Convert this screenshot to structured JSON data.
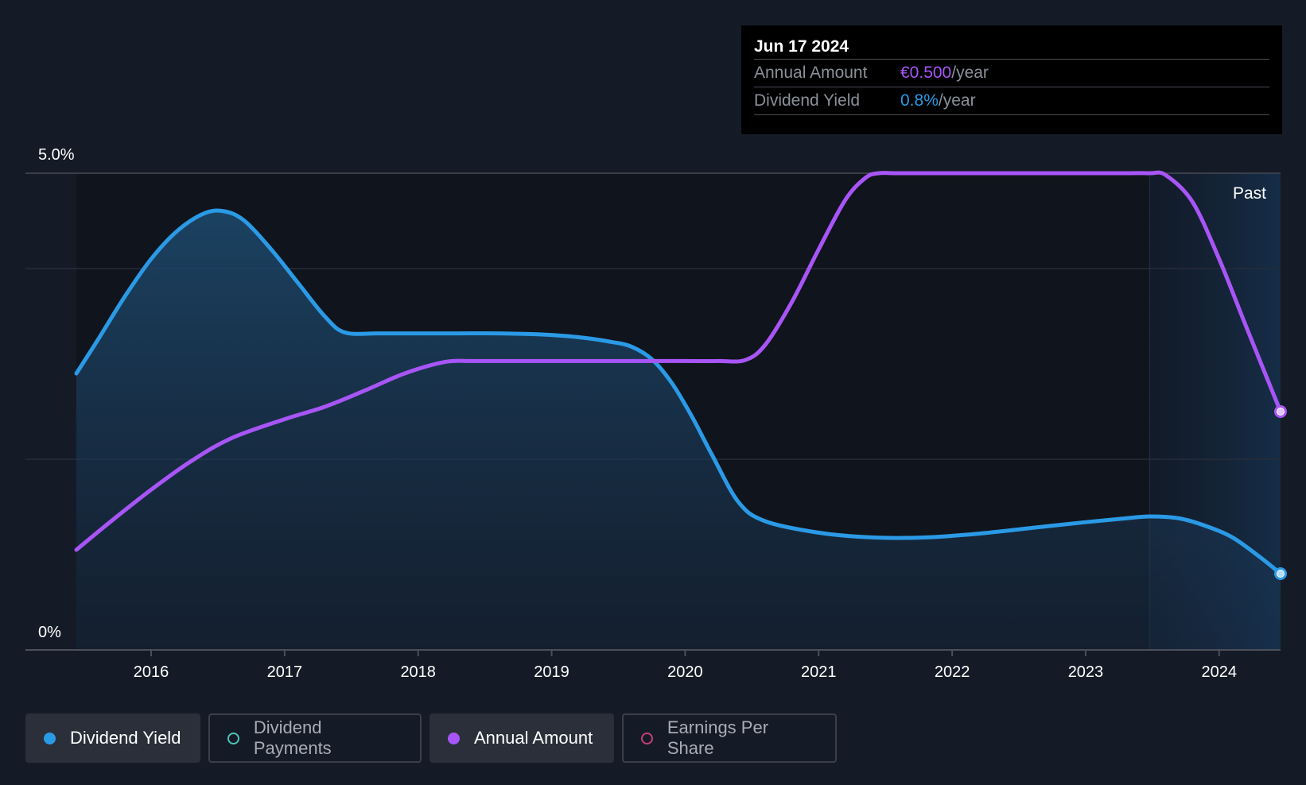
{
  "tooltip": {
    "date": "Jun 17 2024",
    "rows": [
      {
        "label": "Annual Amount",
        "value": "€0.500",
        "unit": "/year"
      },
      {
        "label": "Dividend Yield",
        "value": "0.8%",
        "unit": "/year"
      }
    ]
  },
  "chart_data": {
    "type": "line",
    "y_axis_labels": {
      "top": "5.0%",
      "bottom": "0%"
    },
    "ylim": [
      0,
      5.0
    ],
    "x_ticks": [
      "2016",
      "2017",
      "2018",
      "2019",
      "2020",
      "2021",
      "2022",
      "2023",
      "2024"
    ],
    "xlim": [
      2015.44,
      2024.46
    ],
    "past_label": "Past",
    "forecast_start": 2023.48,
    "series": [
      {
        "name": "Dividend Yield",
        "color": "#2b9ae6",
        "area": true,
        "x": [
          2015.44,
          2015.6,
          2015.8,
          2016.0,
          2016.2,
          2016.4,
          2016.55,
          2016.7,
          2016.9,
          2017.1,
          2017.3,
          2017.45,
          2017.7,
          2018.0,
          2018.3,
          2018.6,
          2018.9,
          2019.2,
          2019.45,
          2019.6,
          2019.75,
          2019.9,
          2020.05,
          2020.2,
          2020.4,
          2020.6,
          2021.0,
          2021.4,
          2021.8,
          2022.2,
          2022.6,
          2023.0,
          2023.3,
          2023.48,
          2023.7,
          2023.9,
          2024.1,
          2024.3,
          2024.46
        ],
        "y": [
          2.9,
          3.25,
          3.7,
          4.1,
          4.4,
          4.58,
          4.6,
          4.5,
          4.2,
          3.85,
          3.5,
          3.33,
          3.32,
          3.32,
          3.32,
          3.32,
          3.31,
          3.28,
          3.23,
          3.18,
          3.05,
          2.8,
          2.45,
          2.05,
          1.55,
          1.35,
          1.23,
          1.18,
          1.18,
          1.22,
          1.28,
          1.34,
          1.38,
          1.4,
          1.38,
          1.3,
          1.18,
          0.98,
          0.8
        ]
      },
      {
        "name": "Annual Amount",
        "color": "#a855f7",
        "area": false,
        "x": [
          2015.44,
          2015.7,
          2016.0,
          2016.3,
          2016.6,
          2017.0,
          2017.3,
          2017.6,
          2017.9,
          2018.2,
          2018.4,
          2018.6,
          2019.0,
          2019.5,
          2020.0,
          2020.25,
          2020.45,
          2020.6,
          2020.8,
          2021.0,
          2021.2,
          2021.35,
          2021.45,
          2021.6,
          2022.0,
          2022.5,
          2023.0,
          2023.3,
          2023.48,
          2023.6,
          2023.8,
          2024.0,
          2024.2,
          2024.46
        ],
        "y": [
          1.05,
          1.35,
          1.68,
          1.98,
          2.22,
          2.42,
          2.55,
          2.72,
          2.9,
          3.02,
          3.03,
          3.03,
          3.03,
          3.03,
          3.03,
          3.03,
          3.04,
          3.2,
          3.65,
          4.2,
          4.72,
          4.95,
          5.0,
          5.0,
          5.0,
          5.0,
          5.0,
          5.0,
          5.0,
          4.98,
          4.7,
          4.1,
          3.4,
          2.5
        ]
      }
    ]
  },
  "legend": [
    {
      "label": "Dividend Yield",
      "color": "#2b9ae6",
      "active": true
    },
    {
      "label": "Dividend Payments",
      "color": "#4fc3b8",
      "active": false
    },
    {
      "label": "Annual Amount",
      "color": "#a855f7",
      "active": true
    },
    {
      "label": "Earnings Per Share",
      "color": "#c2407a",
      "active": false
    }
  ]
}
